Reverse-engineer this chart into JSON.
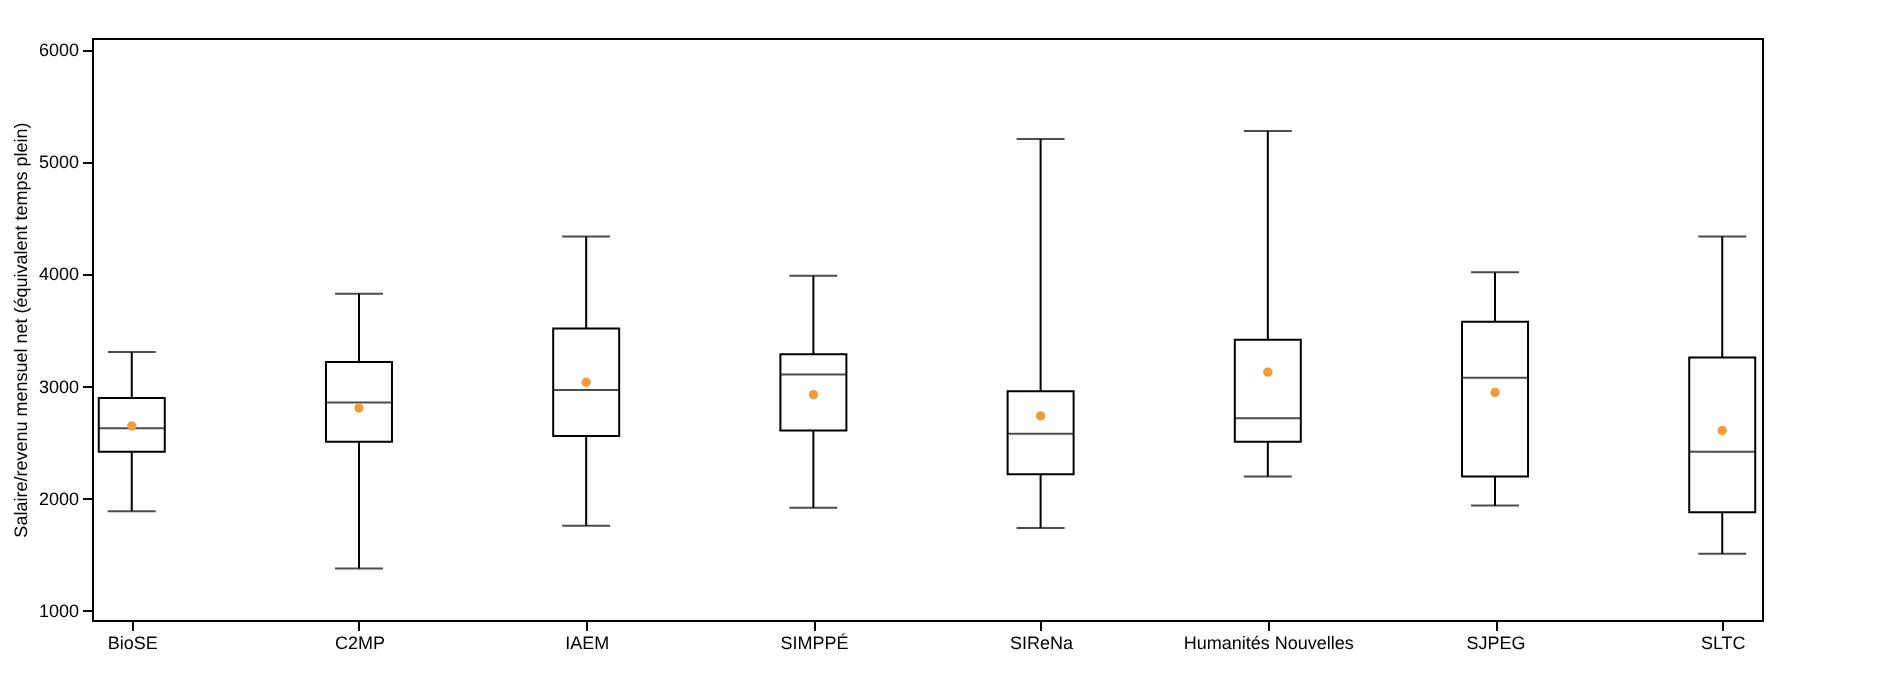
{
  "chart_data": {
    "type": "box",
    "ylabel": "Salaire/revenu mensuel net (équivalent temps plein)",
    "categories": [
      "BioSE",
      "C2MP",
      "IAEM",
      "SIMPPÉ",
      "SIReNa",
      "Humanités Nouvelles",
      "SJPEG",
      "SLTC"
    ],
    "series": [
      {
        "color": "#000000",
        "boxes": [
          {
            "low": 1880,
            "q1": 2410,
            "median": 2620,
            "q3": 2890,
            "high": 3300
          },
          {
            "low": 1370,
            "q1": 2500,
            "median": 2850,
            "q3": 3210,
            "high": 3820
          },
          {
            "low": 1750,
            "q1": 2550,
            "median": 2960,
            "q3": 3510,
            "high": 4330
          },
          {
            "low": 1910,
            "q1": 2600,
            "median": 3100,
            "q3": 3280,
            "high": 3980
          },
          {
            "low": 1730,
            "q1": 2210,
            "median": 2570,
            "q3": 2950,
            "high": 5200
          },
          {
            "low": 2190,
            "q1": 2500,
            "median": 2710,
            "q3": 3410,
            "high": 5270
          },
          {
            "low": 1930,
            "q1": 2190,
            "median": 3070,
            "q3": 3570,
            "high": 4010
          },
          {
            "low": 1500,
            "q1": 1870,
            "median": 2410,
            "q3": 3250,
            "high": 4330
          }
        ]
      },
      {
        "type": "scatter",
        "color": "#f29b38",
        "x": [
          "BioSE",
          "C2MP",
          "IAEM",
          "SIMPPÉ",
          "SIReNa",
          "Humanités Nouvelles",
          "SJPEG",
          "SLTC"
        ],
        "values": [
          2640,
          2800,
          3030,
          2920,
          2730,
          3120,
          2940,
          2600
        ]
      }
    ],
    "marker": "circle",
    "ylim": [
      910,
      6100
    ],
    "yticks": [
      1000,
      2000,
      3000,
      4000,
      5000,
      6000
    ]
  }
}
